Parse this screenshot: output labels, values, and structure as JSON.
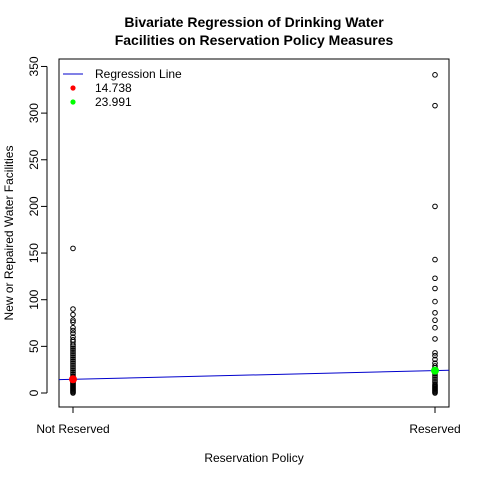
{
  "chart_data": {
    "type": "scatter",
    "title": "Bivariate Regression of Drinking Water Facilities on Reservation Policy Measures",
    "title_lines": [
      "Bivariate Regression of Drinking Water",
      "Facilities on Reservation Policy Measures"
    ],
    "xlabel": "Reservation Policy",
    "ylabel": "New or Repaired Water Facilities",
    "categories": [
      "Not Reserved",
      "Reserved"
    ],
    "ylim": [
      -15,
      358
    ],
    "yticks": [
      0,
      50,
      100,
      150,
      200,
      250,
      300,
      350
    ],
    "grid": false,
    "legend_position": "top-left",
    "series": [
      {
        "category": "Not Reserved",
        "values": [
          155,
          90,
          84,
          78,
          76,
          70,
          67,
          64,
          60,
          57,
          55,
          52,
          50,
          48,
          46,
          44,
          42,
          40,
          38,
          36,
          34,
          32,
          30,
          28,
          26,
          24,
          22,
          20,
          18,
          17,
          16,
          15,
          14,
          13,
          12,
          11,
          10,
          9,
          8,
          7,
          6,
          5,
          4,
          3,
          2,
          1,
          0
        ]
      },
      {
        "category": "Reserved",
        "values": [
          341,
          308,
          200,
          143,
          123,
          112,
          98,
          86,
          78,
          70,
          58,
          43,
          40,
          36,
          32,
          29,
          27,
          25,
          23,
          21,
          19,
          17,
          15,
          13,
          11,
          9,
          8,
          7,
          6,
          5,
          4,
          3,
          2,
          1,
          0
        ]
      }
    ],
    "regression": {
      "name": "Regression Line",
      "color": "#0000cc",
      "intercept": 14.738,
      "reserved_value": 23.991
    },
    "means": [
      {
        "category": "Not Reserved",
        "value": 14.738,
        "label": "14.738",
        "color": "#ff0000"
      },
      {
        "category": "Reserved",
        "value": 23.991,
        "label": "23.991",
        "color": "#00ff00"
      }
    ]
  }
}
